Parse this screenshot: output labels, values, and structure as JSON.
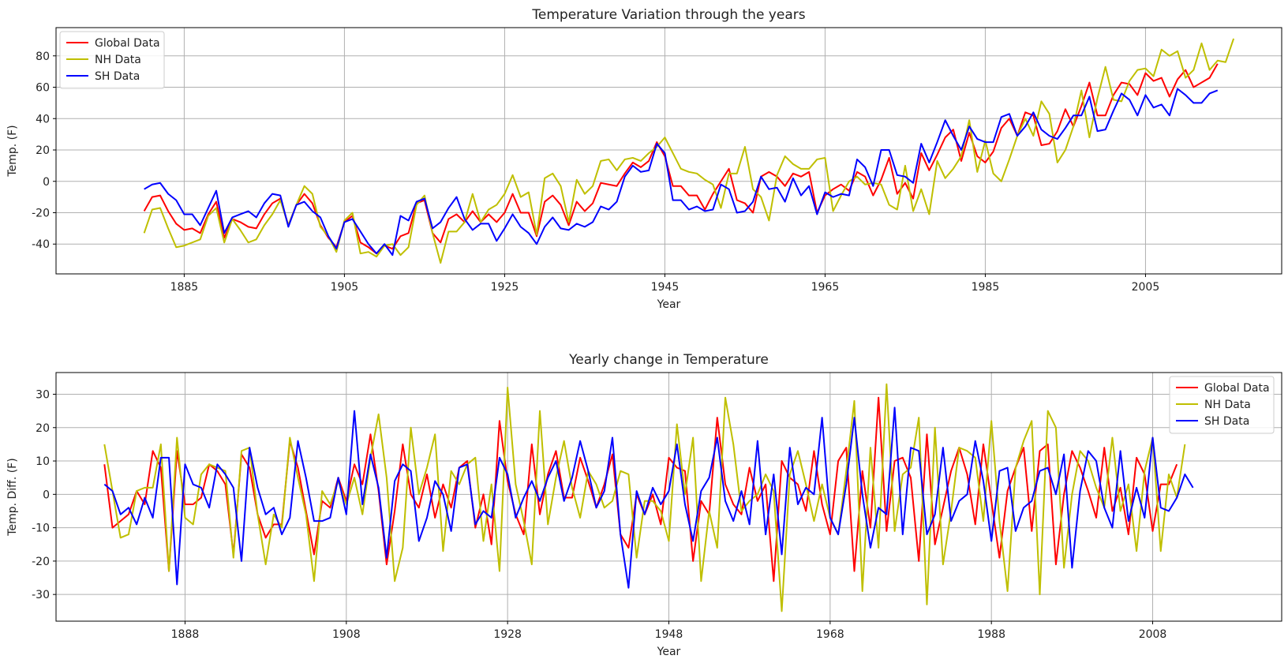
{
  "chart_data": [
    {
      "type": "line",
      "title": "Temperature Variation through the years",
      "xlabel": "Year",
      "ylabel": "Temp. (F)",
      "xlim": [
        1869,
        2022
      ],
      "ylim": [
        -59,
        98
      ],
      "xticks": [
        1885,
        1905,
        1925,
        1945,
        1965,
        1985,
        2005
      ],
      "yticks": [
        -40,
        -20,
        0,
        20,
        40,
        60,
        80
      ],
      "grid": true,
      "legend": "top-left",
      "x_start": 1880,
      "series": [
        {
          "name": "Global Data",
          "color": "#ff0000",
          "values": [
            -19,
            -10,
            -9,
            -19,
            -27,
            -31,
            -30,
            -33,
            -21,
            -13,
            -36,
            -24,
            -26,
            -29,
            -30,
            -21,
            -14,
            -11,
            -28,
            -15,
            -8,
            -14,
            -28,
            -36,
            -42,
            -26,
            -22,
            -39,
            -42,
            -46,
            -41,
            -43,
            -35,
            -33,
            -14,
            -12,
            -33,
            -39,
            -24,
            -21,
            -26,
            -19,
            -26,
            -21,
            -26,
            -20,
            -8,
            -20,
            -20,
            -35,
            -13,
            -9,
            -15,
            -28,
            -13,
            -19,
            -14,
            -1,
            -2,
            -3,
            5,
            12,
            9,
            13,
            25,
            16,
            -3,
            -3,
            -9,
            -9,
            -18,
            -8,
            0,
            8,
            -12,
            -14,
            -20,
            3,
            6,
            3,
            -3,
            5,
            3,
            6,
            -20,
            -9,
            -5,
            -2,
            -6,
            6,
            3,
            -9,
            1,
            15,
            -8,
            -1,
            -11,
            18,
            7,
            17,
            28,
            33,
            13,
            31,
            16,
            12,
            19,
            34,
            40,
            29,
            44,
            42,
            23,
            24,
            32,
            46,
            35,
            48,
            63,
            42,
            42,
            55,
            63,
            62,
            55,
            69,
            64,
            66,
            54,
            65,
            71,
            60,
            63,
            66,
            75
          ]
        },
        {
          "name": "NH Data",
          "color": "#bfbf00",
          "values": [
            -33,
            -18,
            -17,
            -30,
            -42,
            -41,
            -39,
            -37,
            -22,
            -17,
            -39,
            -24,
            -31,
            -39,
            -37,
            -28,
            -21,
            -12,
            -28,
            -15,
            -3,
            -8,
            -29,
            -35,
            -45,
            -25,
            -20,
            -46,
            -45,
            -48,
            -41,
            -40,
            -47,
            -42,
            -15,
            -9,
            -33,
            -52,
            -32,
            -32,
            -26,
            -8,
            -26,
            -18,
            -15,
            -8,
            4,
            -10,
            -7,
            -34,
            2,
            5,
            -3,
            -26,
            1,
            -8,
            -3,
            13,
            14,
            7,
            14,
            15,
            13,
            18,
            22,
            28,
            18,
            8,
            6,
            5,
            1,
            -2,
            -17,
            5,
            5,
            22,
            -5,
            -10,
            -25,
            4,
            16,
            11,
            8,
            8,
            14,
            15,
            -19,
            -9,
            0,
            3,
            -2,
            -1,
            -2,
            -15,
            -18,
            10,
            -19,
            -5,
            -21,
            13,
            2,
            8,
            16,
            39,
            6,
            26,
            5,
            0,
            14,
            29,
            40,
            29,
            51,
            43,
            12,
            20,
            35,
            58,
            28,
            53,
            73,
            52,
            51,
            64,
            71,
            72,
            67,
            84,
            80,
            83,
            66,
            71,
            88,
            71,
            77,
            76,
            91
          ]
        },
        {
          "name": "SH Data",
          "color": "#0000ff",
          "values": [
            -5,
            -2,
            -1,
            -8,
            -12,
            -21,
            -21,
            -28,
            -17,
            -6,
            -33,
            -23,
            -21,
            -19,
            -23,
            -14,
            -8,
            -9,
            -29,
            -15,
            -13,
            -19,
            -23,
            -35,
            -43,
            -26,
            -24,
            -32,
            -40,
            -46,
            -40,
            -47,
            -22,
            -25,
            -13,
            -11,
            -30,
            -26,
            -17,
            -10,
            -24,
            -31,
            -27,
            -27,
            -38,
            -30,
            -21,
            -29,
            -33,
            -40,
            -29,
            -23,
            -30,
            -31,
            -27,
            -29,
            -26,
            -16,
            -18,
            -13,
            3,
            10,
            6,
            7,
            24,
            18,
            -12,
            -12,
            -18,
            -16,
            -19,
            -18,
            -2,
            -5,
            -20,
            -19,
            -13,
            3,
            -5,
            -4,
            -13,
            2,
            -9,
            -3,
            -21,
            -7,
            -10,
            -8,
            -9,
            14,
            9,
            -3,
            20,
            20,
            4,
            3,
            -1,
            24,
            12,
            25,
            39,
            29,
            20,
            35,
            27,
            25,
            25,
            41,
            43,
            29,
            35,
            44,
            33,
            29,
            27,
            34,
            42,
            42,
            54,
            32,
            33,
            45,
            56,
            52,
            42,
            55,
            47,
            49,
            42,
            59,
            55,
            50,
            50,
            56,
            58
          ]
        }
      ]
    },
    {
      "type": "line",
      "title": "Yearly change in Temperature",
      "xlabel": "Year",
      "ylabel": "Temp. Diff. (F)",
      "xlim": [
        1872,
        2024
      ],
      "ylim": [
        -38,
        36.5
      ],
      "xticks": [
        1888,
        1908,
        1928,
        1948,
        1968,
        1988,
        2008
      ],
      "yticks": [
        -30,
        -20,
        -10,
        0,
        10,
        20,
        30
      ],
      "grid": true,
      "legend": "top-right",
      "x_start": 1878,
      "series": [
        {
          "name": "Global Data",
          "color": "#ff0000",
          "values": [
            9,
            -10,
            -8,
            -6,
            1,
            -3,
            13,
            8,
            -23,
            13,
            -3,
            -3,
            -1,
            9,
            7,
            3,
            -18,
            12,
            8,
            -6,
            -13,
            -9,
            -9,
            16,
            8,
            -5,
            -18,
            -2,
            -4,
            5,
            -2,
            9,
            3,
            18,
            1,
            -21,
            -5,
            15,
            0,
            -4,
            6,
            -7,
            3,
            -4,
            8,
            10,
            -10,
            0,
            -15,
            22,
            4,
            -6,
            -12,
            15,
            -6,
            6,
            13,
            -1,
            -1,
            11,
            4,
            -4,
            3,
            12,
            -12,
            -16,
            0,
            -6,
            0,
            -9,
            11,
            8,
            7,
            -20,
            -2,
            -6,
            23,
            3,
            -3,
            -6,
            8,
            -2,
            3,
            -26,
            10,
            5,
            3,
            -5,
            13,
            -3,
            -12,
            10,
            14,
            -23,
            7,
            -10,
            29,
            -11,
            10,
            11,
            5,
            -20,
            18,
            -15,
            -4,
            7,
            14,
            6,
            -9,
            15,
            -2,
            -19,
            1,
            8,
            14,
            -11,
            13,
            15,
            -21,
            0,
            13,
            8,
            1,
            -7,
            14,
            -5,
            2,
            -12,
            11,
            6,
            -11,
            3,
            3,
            9
          ]
        },
        {
          "name": "NH Data",
          "color": "#bfbf00",
          "values": [
            15,
            1,
            -13,
            -12,
            1,
            2,
            2,
            15,
            -23,
            17,
            -7,
            -9,
            6,
            9,
            8,
            7,
            -19,
            13,
            14,
            -6,
            -21,
            -6,
            -10,
            17,
            5,
            -6,
            -26,
            1,
            -3,
            4,
            -3,
            5,
            -6,
            11,
            24,
            5,
            -26,
            -16,
            20,
            0,
            8,
            18,
            -17,
            7,
            3,
            9,
            11,
            -14,
            3,
            -23,
            32,
            3,
            -8,
            -21,
            25,
            -9,
            5,
            16,
            2,
            -7,
            7,
            3,
            -4,
            -2,
            7,
            6,
            -19,
            -2,
            -2,
            -5,
            -14,
            21,
            0,
            17,
            -26,
            -5,
            -16,
            29,
            15,
            -5,
            -2,
            0,
            6,
            1,
            -35,
            6,
            13,
            3,
            -8,
            3,
            -7,
            -12,
            7,
            28,
            -29,
            14,
            -16,
            33,
            -11,
            6,
            8,
            23,
            -33,
            20,
            -21,
            -5,
            14,
            13,
            11,
            -8,
            22,
            -8,
            -29,
            8,
            16,
            22,
            -30,
            25,
            20,
            -22,
            0,
            13,
            10,
            2,
            -4,
            17,
            -5,
            3,
            -17,
            7,
            17,
            -17,
            6,
            -1,
            15
          ]
        },
        {
          "name": "SH Data",
          "color": "#0000ff",
          "values": [
            3,
            1,
            -6,
            -4,
            -9,
            -1,
            -7,
            11,
            11,
            -27,
            9,
            3,
            2,
            -4,
            9,
            6,
            2,
            -20,
            14,
            2,
            -6,
            -4,
            -12,
            -7,
            16,
            5,
            -8,
            -8,
            -7,
            5,
            -6,
            25,
            -3,
            12,
            2,
            -19,
            4,
            9,
            7,
            -14,
            -7,
            4,
            0,
            -11,
            8,
            9,
            -9,
            -5,
            -7,
            11,
            6,
            -7,
            -1,
            4,
            -2,
            5,
            10,
            -2,
            5,
            16,
            7,
            -4,
            1,
            17,
            -12,
            -28,
            1,
            -6,
            2,
            -3,
            1,
            15,
            -3,
            -14,
            1,
            5,
            17,
            -2,
            -8,
            1,
            -9,
            16,
            -12,
            6,
            -18,
            14,
            -3,
            2,
            0,
            23,
            -7,
            -12,
            3,
            23,
            0,
            -16,
            -4,
            -6,
            26,
            -12,
            14,
            13,
            -12,
            -6,
            14,
            -8,
            -2,
            0,
            16,
            4,
            -14,
            7,
            8,
            -11,
            -4,
            -2,
            7,
            8,
            0,
            12,
            -22,
            1,
            13,
            10,
            -4,
            -10,
            13,
            -8,
            2,
            -7,
            17,
            -4,
            -5,
            -1,
            6,
            2
          ]
        }
      ]
    }
  ]
}
